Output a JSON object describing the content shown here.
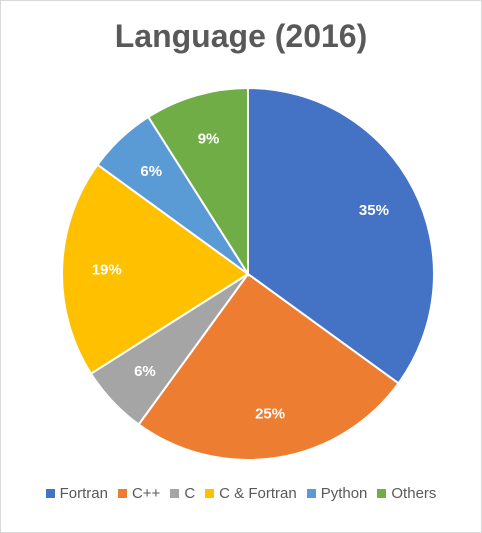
{
  "chart_data": {
    "type": "pie",
    "title": "Language (2016)",
    "legend_position": "bottom",
    "slices": [
      {
        "name": "Fortran",
        "value": 35,
        "label": "35%",
        "color": "#4472C4"
      },
      {
        "name": "C++",
        "value": 25,
        "label": "25%",
        "color": "#ED7D31"
      },
      {
        "name": "C",
        "value": 6,
        "label": "6%",
        "color": "#A5A5A5"
      },
      {
        "name": "C & Fortran",
        "value": 19,
        "label": "19%",
        "color": "#FFC000"
      },
      {
        "name": "Python",
        "value": 6,
        "label": "6%",
        "color": "#5B9BD5"
      },
      {
        "name": "Others",
        "value": 9,
        "label": "9%",
        "color": "#70AD47"
      }
    ]
  }
}
